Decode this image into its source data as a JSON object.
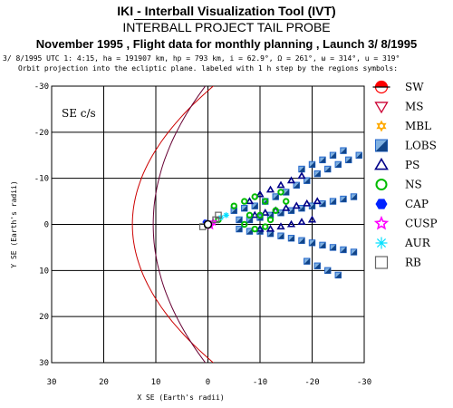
{
  "header": {
    "title": "IKI - Interball Visualization Tool (IVT)",
    "subtitle": "INTERBALL PROJECT TAIL PROBE",
    "planning": "November 1995 ,  Flight data for monthly planning ,   Launch  3/ 8/1995",
    "orbit_params": "3/ 8/1995 UTC  1: 4:15, ha = 191907 km, hp =    793 km, i = 62.9°, Ω = 261°, ω = 314°, u = 319°",
    "projection_note": "Orbit projection into the ecliptic plane. labeled with 1 h step by the regions symbols:"
  },
  "chart_data": {
    "type": "scatter",
    "panel_label": "SE c/s",
    "xlabel": "X SE (Earth's radii)",
    "ylabel": "Y SE (Earth's radii)",
    "xlim": [
      30,
      -30
    ],
    "ylim": [
      -30,
      30
    ],
    "x_ticks": [
      30,
      20,
      10,
      0,
      -10,
      -20,
      -30
    ],
    "y_ticks": [
      -30,
      -20,
      -10,
      0,
      10,
      20,
      30
    ],
    "x_tick_labels": [
      "30",
      "20",
      "10",
      "0",
      "-10",
      "-20",
      "-30"
    ],
    "y_tick_labels": [
      "-30",
      "-20",
      "-10",
      "0",
      "10",
      "20",
      "30"
    ],
    "grid": true,
    "bow_shock": {
      "color": "#cc0000",
      "nose_x": 14.5,
      "flare": 14.5
    },
    "magnetopause": {
      "color": "#660033",
      "nose_x": 10.5,
      "flare": 22.5
    },
    "series": [
      {
        "name": "SW",
        "color": "#ff0000",
        "symbol": "half-circle",
        "points": []
      },
      {
        "name": "MS",
        "color": "#cc0033",
        "symbol": "triangle-down-open",
        "points": []
      },
      {
        "name": "MBL",
        "color": "#ffaa00",
        "symbol": "star6",
        "points": []
      },
      {
        "name": "LOBS",
        "color": "#2266cc",
        "symbol": "square-split",
        "points": [
          [
            -5,
            -3
          ],
          [
            -7,
            -3.5
          ],
          [
            -9,
            -4
          ],
          [
            -11,
            -5
          ],
          [
            -13,
            -6
          ],
          [
            -15,
            -7
          ],
          [
            -17,
            -8.5
          ],
          [
            -19,
            -9.5
          ],
          [
            -21,
            -11
          ],
          [
            -23,
            -12
          ],
          [
            -25,
            -13
          ],
          [
            -27,
            -14
          ],
          [
            -29,
            -15
          ],
          [
            -6,
            -1
          ],
          [
            -8,
            -1
          ],
          [
            -10,
            -1.5
          ],
          [
            -12,
            -2
          ],
          [
            -14,
            -2.5
          ],
          [
            -16,
            -3
          ],
          [
            -18,
            -3.5
          ],
          [
            -20,
            -4
          ],
          [
            -22,
            -4.5
          ],
          [
            -24,
            -5
          ],
          [
            -26,
            -5.5
          ],
          [
            -28,
            -6
          ],
          [
            -6,
            1
          ],
          [
            -8,
            1.5
          ],
          [
            -10,
            1.5
          ],
          [
            -12,
            2
          ],
          [
            -14,
            2.5
          ],
          [
            -16,
            3
          ],
          [
            -18,
            3.5
          ],
          [
            -20,
            4
          ],
          [
            -22,
            4.5
          ],
          [
            -24,
            5
          ],
          [
            -26,
            5.5
          ],
          [
            -28,
            6
          ],
          [
            -18,
            -12
          ],
          [
            -20,
            -13
          ],
          [
            -22,
            -14
          ],
          [
            -24,
            -15
          ],
          [
            -26,
            -16
          ],
          [
            -19,
            8
          ],
          [
            -21,
            9
          ],
          [
            -23,
            10
          ],
          [
            -25,
            11
          ]
        ]
      },
      {
        "name": "PS",
        "color": "#000088",
        "symbol": "triangle-open",
        "points": [
          [
            -8,
            -5
          ],
          [
            -10,
            -6.5
          ],
          [
            -12,
            -7.5
          ],
          [
            -14,
            -8.5
          ],
          [
            -16,
            -9.5
          ],
          [
            -18,
            -10.5
          ],
          [
            -9,
            -2
          ],
          [
            -11,
            -2.5
          ],
          [
            -13,
            -3
          ],
          [
            -15,
            -3.5
          ],
          [
            -17,
            -4
          ],
          [
            -19,
            -4.5
          ],
          [
            -21,
            -5
          ],
          [
            -10,
            1
          ],
          [
            -12,
            1
          ],
          [
            -14,
            0.5
          ],
          [
            -16,
            0
          ],
          [
            -18,
            -0.5
          ],
          [
            -20,
            -1
          ]
        ]
      },
      {
        "name": "NS",
        "color": "#00bb00",
        "symbol": "circle-open",
        "points": [
          [
            -2,
            -1
          ],
          [
            -5,
            -4
          ],
          [
            -7,
            -5
          ],
          [
            -9,
            -6
          ],
          [
            -11,
            -5
          ],
          [
            -13,
            -3
          ],
          [
            -14,
            -7
          ],
          [
            -15,
            -5
          ],
          [
            -7,
            0
          ],
          [
            -9,
            1
          ],
          [
            -11,
            0.5
          ],
          [
            -12,
            -1
          ],
          [
            -10,
            -2
          ],
          [
            -8,
            -2
          ]
        ]
      },
      {
        "name": "CAP",
        "color": "#0022ff",
        "symbol": "hexagon",
        "points": [
          [
            0.5,
            -0.5
          ]
        ]
      },
      {
        "name": "CUSP",
        "color": "#ff00ff",
        "symbol": "star5-open",
        "points": [
          [
            -1,
            -0.5
          ],
          [
            -0.5,
            0.3
          ]
        ]
      },
      {
        "name": "AUR",
        "color": "#00e0ff",
        "symbol": "asterisk",
        "points": [
          [
            -2.5,
            -1.5
          ],
          [
            -3.5,
            -2
          ]
        ]
      },
      {
        "name": "RB",
        "color": "#666666",
        "symbol": "square-open",
        "points": [
          [
            0,
            0
          ],
          [
            1,
            0.5
          ],
          [
            -1.5,
            -1
          ],
          [
            -2,
            -2
          ]
        ]
      }
    ]
  }
}
